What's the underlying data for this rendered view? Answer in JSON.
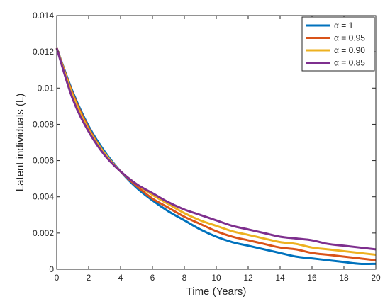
{
  "chart_data": {
    "type": "line",
    "title": "",
    "xlabel": "Time (Years)",
    "ylabel": "Latent individuals (L)",
    "xlim": [
      0,
      20
    ],
    "ylim": [
      0,
      0.014
    ],
    "x_ticks": [
      0,
      2,
      4,
      6,
      8,
      10,
      12,
      14,
      16,
      18,
      20
    ],
    "y_ticks": [
      0,
      0.002,
      0.004,
      0.006,
      0.008,
      0.01,
      0.012,
      0.014
    ],
    "y_tick_labels": [
      "0",
      "0.002",
      "0.004",
      "0.006",
      "0.008",
      "0.01",
      "0.012",
      "0.014"
    ],
    "grid": false,
    "legend_position": "top-right",
    "x": [
      0,
      1,
      2,
      3,
      4,
      5,
      6,
      7,
      8,
      9,
      10,
      11,
      12,
      13,
      14,
      15,
      16,
      17,
      18,
      19,
      20
    ],
    "series": [
      {
        "name": "α = 1",
        "color": "#0072BD",
        "values": [
          0.0122,
          0.0098,
          0.0079,
          0.0065,
          0.0054,
          0.0045,
          0.0038,
          0.0032,
          0.0027,
          0.0022,
          0.0018,
          0.0015,
          0.0013,
          0.0011,
          0.0009,
          0.0007,
          0.0006,
          0.0005,
          0.0004,
          0.0003,
          0.0003
        ]
      },
      {
        "name": "α = 0.95",
        "color": "#D95319",
        "values": [
          0.0122,
          0.0097,
          0.0078,
          0.0064,
          0.0054,
          0.0046,
          0.0039,
          0.0034,
          0.0029,
          0.0025,
          0.0021,
          0.0018,
          0.0016,
          0.0014,
          0.0012,
          0.0011,
          0.0009,
          0.0008,
          0.0007,
          0.0006,
          0.0005
        ]
      },
      {
        "name": "α = 0.90",
        "color": "#EDB120",
        "values": [
          0.0122,
          0.0096,
          0.0077,
          0.0064,
          0.0054,
          0.0047,
          0.0041,
          0.0036,
          0.0031,
          0.0027,
          0.0024,
          0.0021,
          0.0019,
          0.0017,
          0.0015,
          0.0014,
          0.0012,
          0.0011,
          0.001,
          0.0009,
          0.0008
        ]
      },
      {
        "name": "α = 0.85",
        "color": "#7E2F8E",
        "values": [
          0.0122,
          0.0094,
          0.0076,
          0.0063,
          0.0054,
          0.0047,
          0.0042,
          0.0037,
          0.0033,
          0.003,
          0.0027,
          0.0024,
          0.0022,
          0.002,
          0.0018,
          0.0017,
          0.0016,
          0.0014,
          0.0013,
          0.0012,
          0.0011
        ]
      }
    ]
  }
}
